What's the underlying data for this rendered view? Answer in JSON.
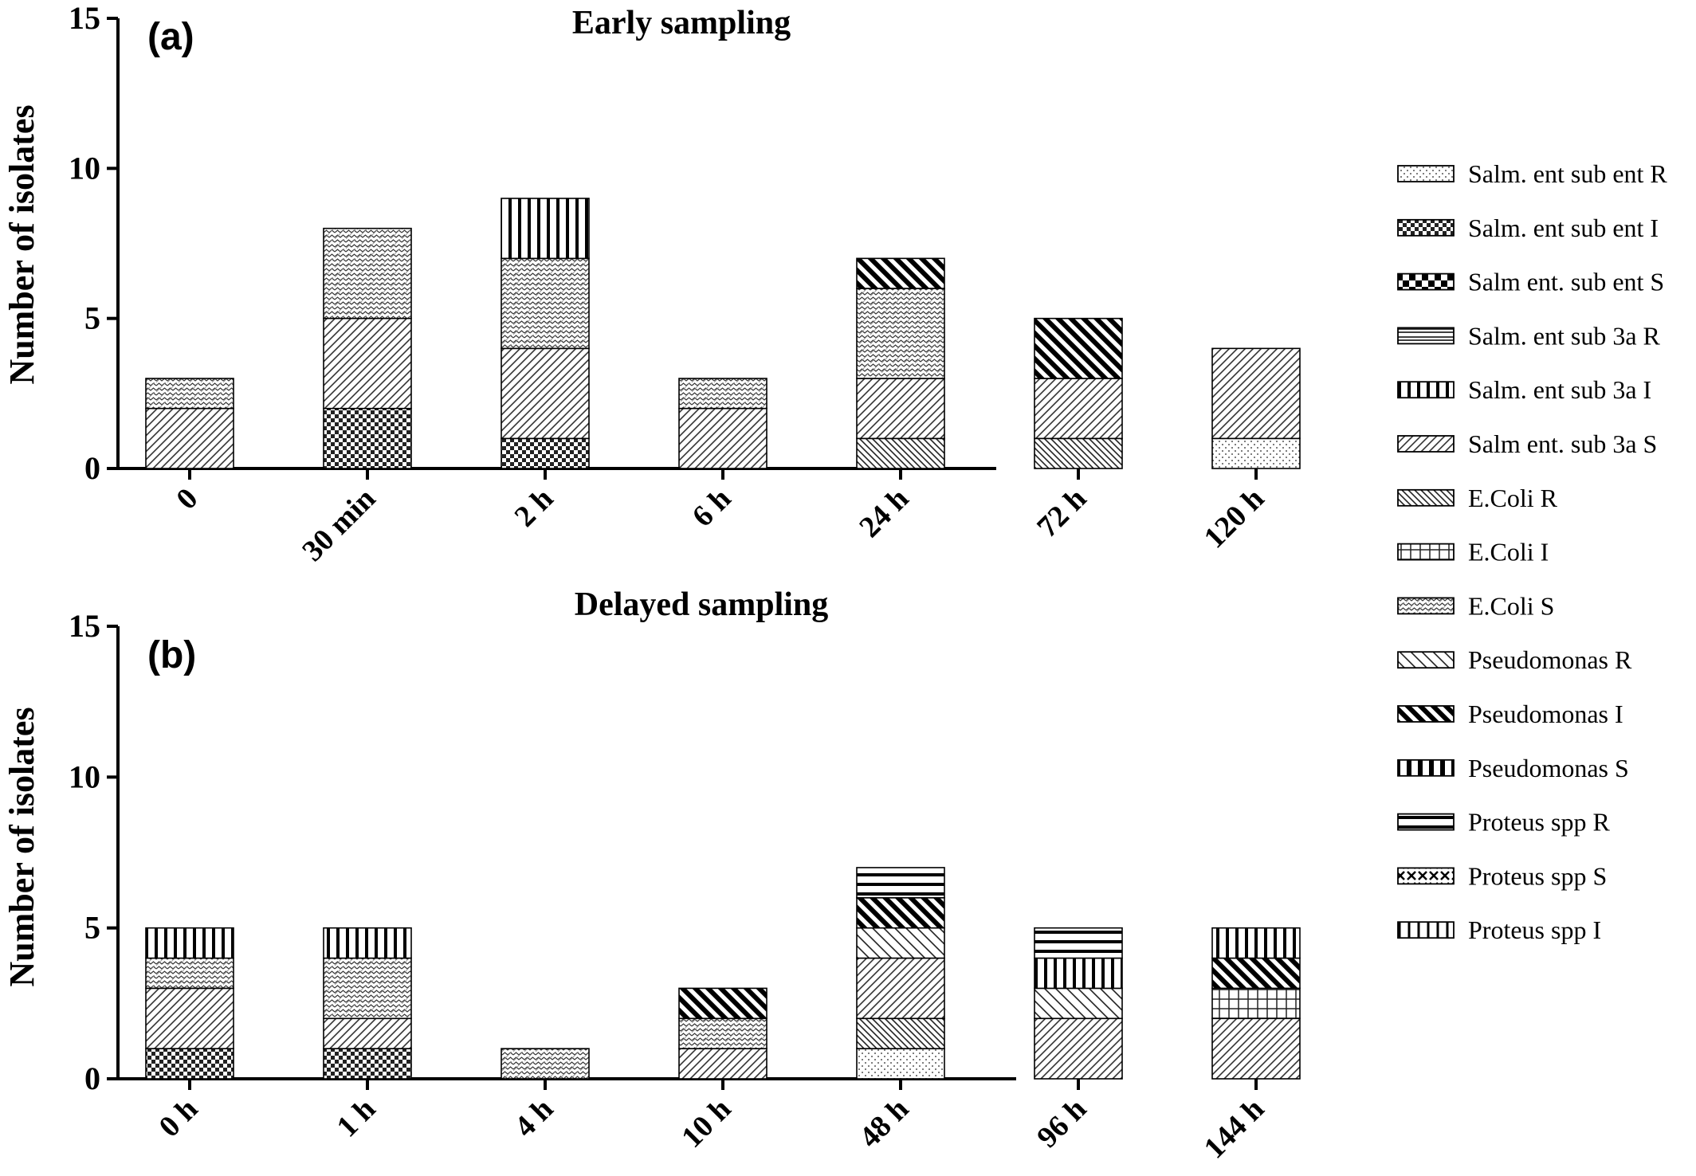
{
  "chart_data": [
    {
      "type": "bar",
      "stacked": true,
      "panel_label": "(a)",
      "title": "Early sampling",
      "xlabel": "",
      "ylabel": "Number of isolates",
      "ylim": [
        0,
        15
      ],
      "yticks": [
        0,
        5,
        10,
        15
      ],
      "categories": [
        "0",
        "30 min",
        "2 h",
        "6 h",
        "24 h",
        "72 h",
        "120 h"
      ],
      "series": [
        {
          "name": "Salm. ent sub ent R",
          "values": [
            0,
            0,
            0,
            0,
            0,
            0,
            1
          ]
        },
        {
          "name": "Salm. ent sub ent I",
          "values": [
            0,
            2,
            1,
            0,
            0,
            0,
            0
          ]
        },
        {
          "name": "E.Coli R",
          "values": [
            0,
            0,
            0,
            0,
            1,
            1,
            0
          ]
        },
        {
          "name": "Salm ent. sub 3a S",
          "values": [
            2,
            3,
            3,
            2,
            2,
            2,
            3
          ]
        },
        {
          "name": "E.Coli S",
          "values": [
            1,
            3,
            3,
            1,
            3,
            0,
            0
          ]
        },
        {
          "name": "Pseudomonas I",
          "values": [
            0,
            0,
            0,
            0,
            1,
            2,
            0
          ]
        },
        {
          "name": "Salm. ent sub 3a I",
          "values": [
            0,
            0,
            2,
            0,
            0,
            0,
            0
          ]
        }
      ]
    },
    {
      "type": "bar",
      "stacked": true,
      "panel_label": "(b)",
      "title": "Delayed sampling",
      "xlabel": "",
      "ylabel": "Number of isolates",
      "ylim": [
        0,
        15
      ],
      "yticks": [
        0,
        5,
        10,
        15
      ],
      "categories": [
        "0 h",
        "1 h",
        "4 h",
        "10 h",
        "48 h",
        "96 h",
        "144 h"
      ],
      "series": [
        {
          "name": "Salm. ent sub ent R",
          "values": [
            0,
            0,
            0,
            0,
            1,
            0,
            0
          ]
        },
        {
          "name": "Salm. ent sub ent I",
          "values": [
            1,
            1,
            0,
            0,
            0,
            0,
            0
          ]
        },
        {
          "name": "E.Coli R",
          "values": [
            0,
            0,
            0,
            0,
            1,
            0,
            0
          ]
        },
        {
          "name": "Salm ent. sub 3a S",
          "values": [
            2,
            1,
            0,
            1,
            2,
            2,
            2
          ]
        },
        {
          "name": "Pseudomonas R",
          "values": [
            0,
            0,
            0,
            0,
            1,
            1,
            0
          ]
        },
        {
          "name": "E.Coli I",
          "values": [
            0,
            0,
            0,
            0,
            0,
            0,
            1
          ]
        },
        {
          "name": "E.Coli S",
          "values": [
            1,
            2,
            1,
            1,
            0,
            0,
            0
          ]
        },
        {
          "name": "Pseudomonas I",
          "values": [
            0,
            0,
            0,
            1,
            1,
            0,
            1
          ]
        },
        {
          "name": "Salm. ent sub 3a I",
          "values": [
            1,
            1,
            0,
            0,
            0,
            1,
            1
          ]
        },
        {
          "name": "Proteus spp R",
          "values": [
            0,
            0,
            0,
            0,
            1,
            1,
            0
          ]
        }
      ]
    }
  ],
  "legend": {
    "position": "right",
    "items": [
      {
        "label": "Salm. ent sub ent R",
        "pattern": "dots"
      },
      {
        "label": "Salm. ent sub ent I",
        "pattern": "checker-fine"
      },
      {
        "label": "Salm ent. sub ent S",
        "pattern": "checker-coarse"
      },
      {
        "label": "Salm. ent sub 3a R",
        "pattern": "hlines-double"
      },
      {
        "label": "Salm. ent sub 3a I",
        "pattern": "vlines"
      },
      {
        "label": "Salm ent. sub 3a S",
        "pattern": "diag-right"
      },
      {
        "label": "E.Coli R",
        "pattern": "diag-left-dense"
      },
      {
        "label": "E.Coli I",
        "pattern": "grid"
      },
      {
        "label": "E.Coli S",
        "pattern": "zigzag"
      },
      {
        "label": "Pseudomonas R",
        "pattern": "diag-left-sparse"
      },
      {
        "label": "Pseudomonas I",
        "pattern": "diag-left-bold"
      },
      {
        "label": "Pseudomonas S",
        "pattern": "vlines-bold"
      },
      {
        "label": "Proteus spp R",
        "pattern": "hlines-bold"
      },
      {
        "label": "Proteus spp S",
        "pattern": "crosses"
      },
      {
        "label": "Proteus spp I",
        "pattern": "vlines-medium"
      }
    ]
  }
}
